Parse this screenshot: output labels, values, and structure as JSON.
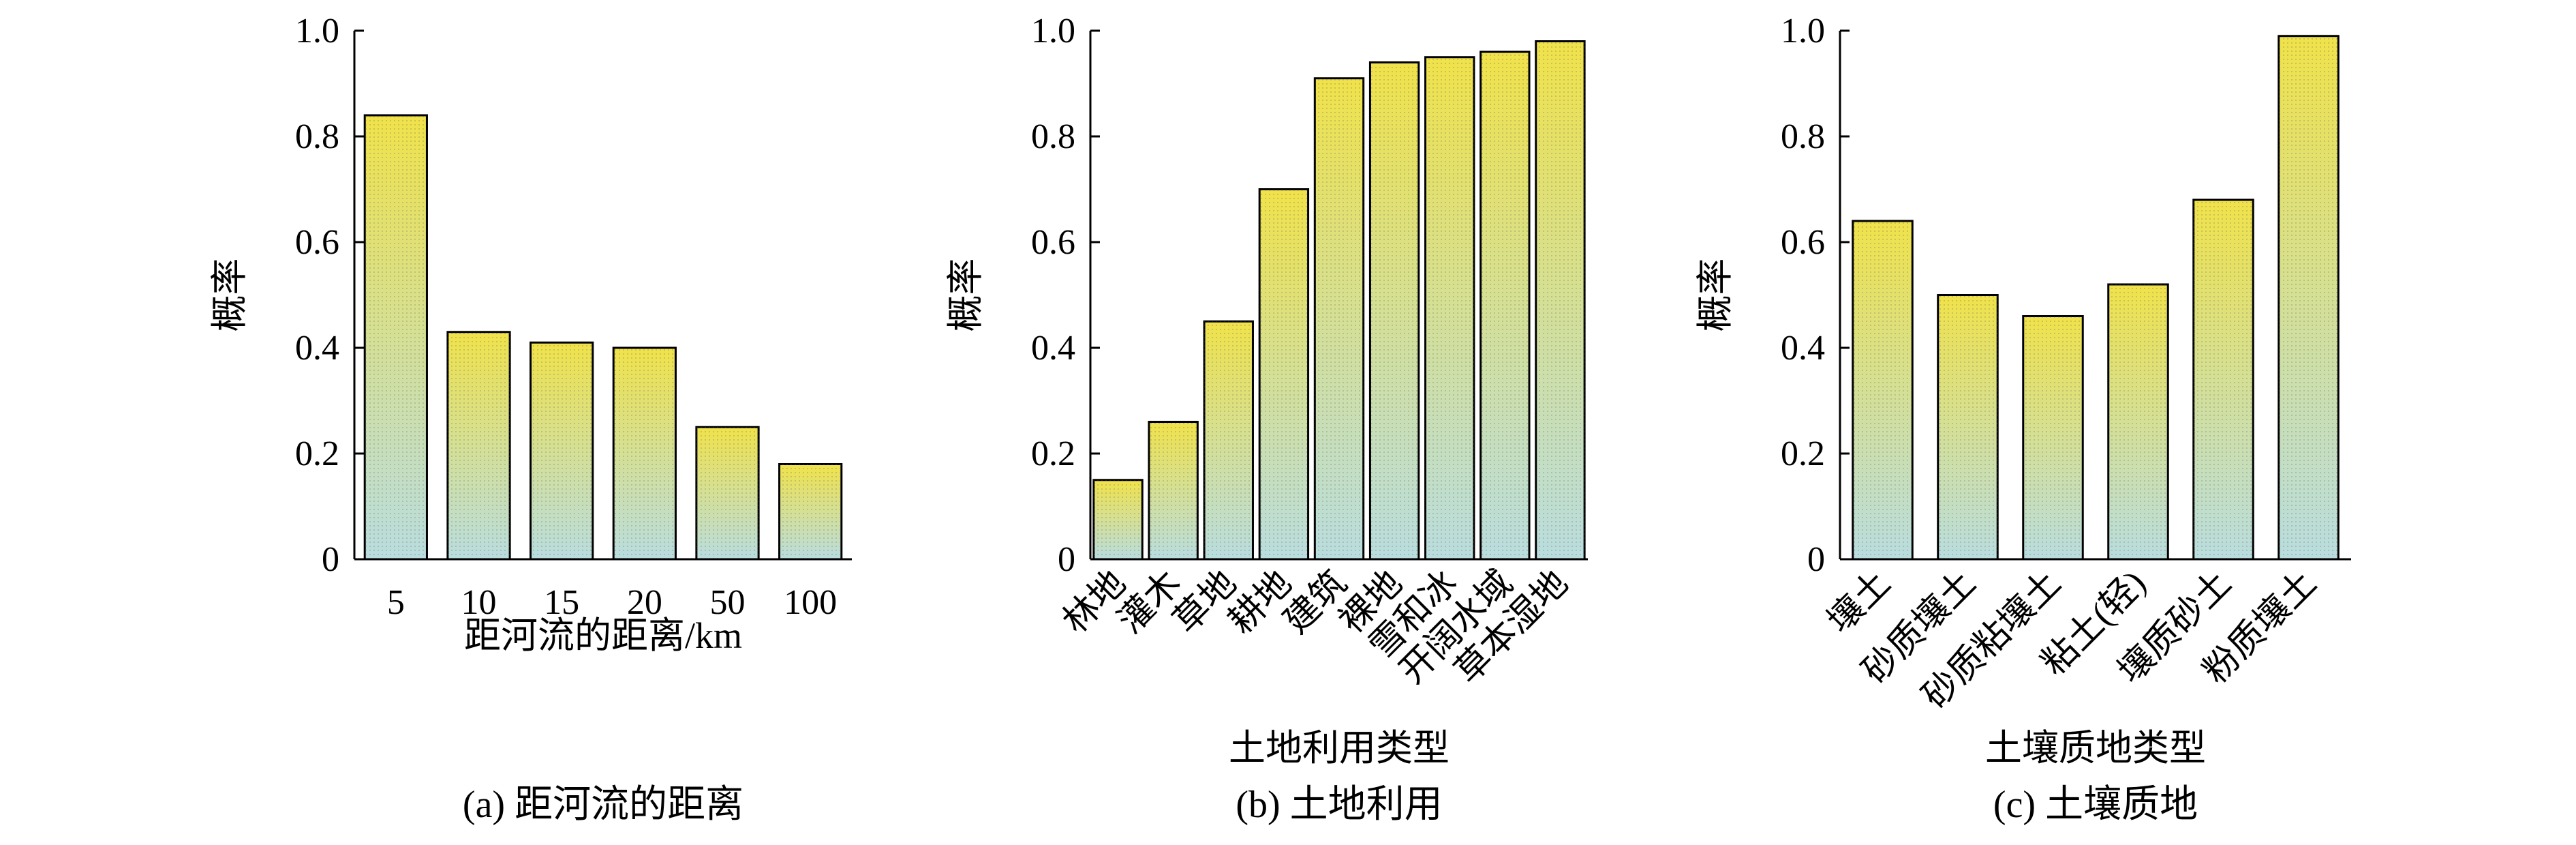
{
  "colors": {
    "bar_top": "#f0e24a",
    "bar_bottom": "#b9dde0",
    "bar_edge": "#000000",
    "axis": "#000000"
  },
  "chart_data": [
    {
      "type": "bar",
      "caption": "(a) 距河流的距离",
      "xlabel": "距河流的距离/km",
      "ylabel": "概率",
      "ylim": [
        0,
        1.0
      ],
      "yticks": [
        "0",
        "0.2",
        "0.4",
        "0.6",
        "0.8",
        "1.0"
      ],
      "categories": [
        "5",
        "10",
        "15",
        "20",
        "50",
        "100"
      ],
      "values": [
        0.84,
        0.43,
        0.41,
        0.4,
        0.25,
        0.18
      ],
      "rotated_ticks": false
    },
    {
      "type": "bar",
      "caption": "(b) 土地利用",
      "xlabel": "土地利用类型",
      "ylabel": "概率",
      "ylim": [
        0,
        1.0
      ],
      "yticks": [
        "0",
        "0.2",
        "0.4",
        "0.6",
        "0.8",
        "1.0"
      ],
      "categories": [
        "林地",
        "灌木",
        "草地",
        "耕地",
        "建筑",
        "裸地",
        "雪和冰",
        "开阔水域",
        "草本湿地"
      ],
      "values": [
        0.15,
        0.26,
        0.45,
        0.7,
        0.91,
        0.94,
        0.95,
        0.96,
        0.98
      ],
      "rotated_ticks": true
    },
    {
      "type": "bar",
      "caption": "(c) 土壤质地",
      "xlabel": "土壤质地类型",
      "ylabel": "概率",
      "ylim": [
        0,
        1.0
      ],
      "yticks": [
        "0",
        "0.2",
        "0.4",
        "0.6",
        "0.8",
        "1.0"
      ],
      "categories": [
        "壤土",
        "砂质壤土",
        "砂质粘壤土",
        "粘土(轻)",
        "壤质砂土",
        "粉质壤土"
      ],
      "values": [
        0.64,
        0.5,
        0.46,
        0.52,
        0.68,
        0.99
      ],
      "rotated_ticks": true
    }
  ]
}
